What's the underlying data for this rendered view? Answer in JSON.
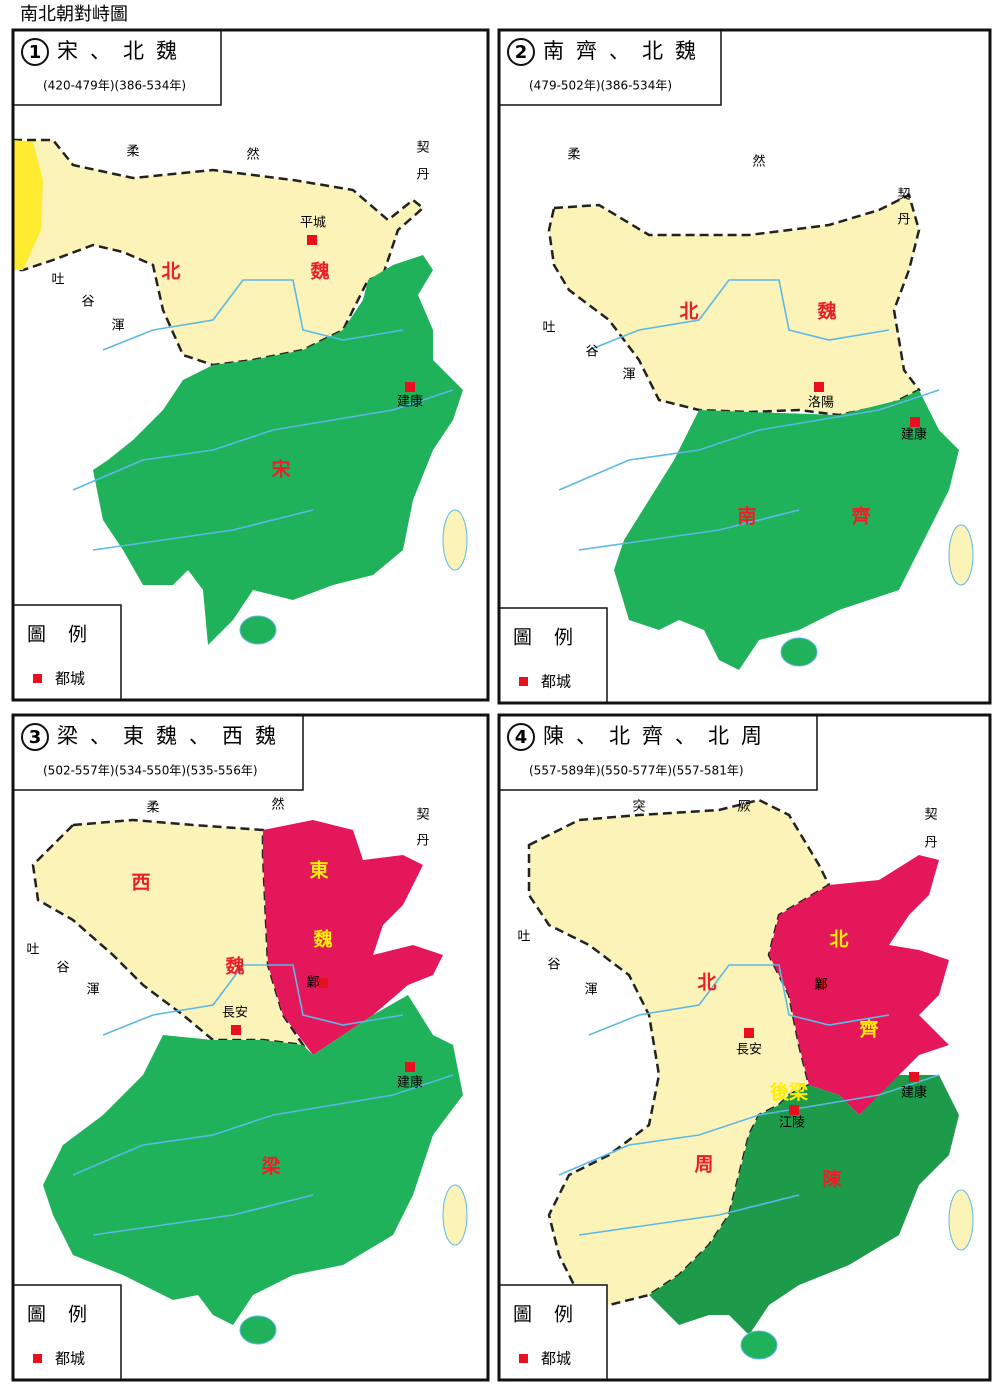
{
  "title": "南北朝對峙圖",
  "maps": [
    {
      "number": "1",
      "heading": "宋、北魏",
      "years": "(420-479年)(386-534年)",
      "legend_title": "圖例",
      "legend_item": "都城",
      "labels": [
        "柔",
        "然",
        "契",
        "丹",
        "平城",
        "北",
        "魏",
        "吐",
        "谷",
        "渾",
        "建康",
        "宋"
      ]
    },
    {
      "number": "2",
      "heading": "南齊、北魏",
      "years": "(479-502年)(386-534年)",
      "legend_title": "圖例",
      "legend_item": "都城",
      "labels": [
        "柔",
        "然",
        "契",
        "丹",
        "吐",
        "谷",
        "渾",
        "北",
        "魏",
        "洛陽",
        "建康",
        "南",
        "齊"
      ]
    },
    {
      "number": "3",
      "heading": "梁、東魏、西魏",
      "years": "(502-557年)(534-550年)(535-556年)",
      "legend_title": "圖例",
      "legend_item": "都城",
      "labels": [
        "柔",
        "然",
        "契",
        "丹",
        "西",
        "東",
        "魏",
        "魏",
        "吐",
        "谷",
        "渾",
        "鄴",
        "長安",
        "建康",
        "梁"
      ]
    },
    {
      "number": "4",
      "heading": "陳、北齊、北周",
      "years": "(557-589年)(550-577年)(557-581年)",
      "legend_title": "圖例",
      "legend_item": "都城",
      "labels": [
        "突",
        "厥",
        "契",
        "丹",
        "吐",
        "谷",
        "渾",
        "北",
        "北",
        "鄴",
        "齊",
        "長安",
        "後梁",
        "江陵",
        "建康",
        "周",
        "陳"
      ]
    }
  ]
}
